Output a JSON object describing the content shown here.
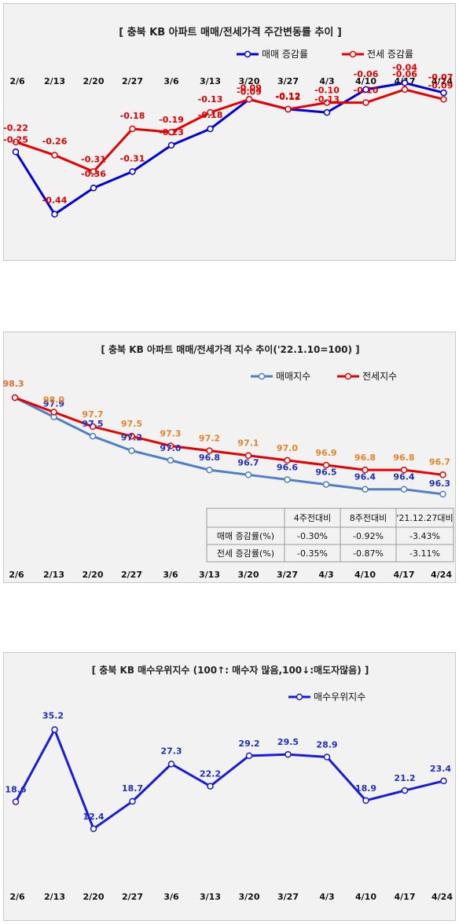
{
  "charts": [
    {
      "title": "[ 충북  KB 아파트 매매/전세가격 주간변동률 추이 ]",
      "type": "line",
      "categories": [
        "2/6",
        "2/13",
        "2/20",
        "2/27",
        "3/6",
        "3/13",
        "3/20",
        "3/27",
        "4/3",
        "4/10",
        "4/17",
        "4/24"
      ],
      "series": [
        {
          "name": "매매 증감률",
          "color": "#0000d8",
          "label_color": "#e00000",
          "values": [
            -0.25,
            -0.44,
            -0.36,
            -0.31,
            -0.23,
            -0.18,
            -0.09,
            -0.12,
            -0.13,
            -0.06,
            -0.04,
            -0.07
          ]
        },
        {
          "name": "전세 증감률",
          "color": "#e60000",
          "label_color": "#e00000",
          "values": [
            -0.22,
            -0.26,
            -0.31,
            -0.18,
            -0.19,
            -0.13,
            -0.09,
            -0.12,
            -0.1,
            -0.1,
            -0.06,
            -0.09
          ]
        }
      ],
      "labels": [
        [
          "-0.25",
          "-0.44",
          "-0.36",
          "-0.31",
          "-0.23",
          "-0.18",
          "-0.09",
          "-0.12",
          "-0.13",
          "-0.06",
          "-0.04",
          "-0.07"
        ],
        [
          "-0.22",
          "-0.26",
          "-0.31",
          "-0.18",
          "-0.19",
          "-0.13",
          "-0.09",
          "-0.12",
          "-0.10",
          "-0.10",
          "-0.06",
          "-0.09"
        ]
      ]
    },
    {
      "title": "[  충북  KB 아파트 매매/전세가격 지수 추이('22.1.10=100)  ]",
      "type": "line",
      "categories": [
        "2/6",
        "2/13",
        "2/20",
        "2/27",
        "3/6",
        "3/13",
        "3/20",
        "3/27",
        "4/3",
        "4/10",
        "4/17",
        "4/24"
      ],
      "series": [
        {
          "name": "매매지수",
          "color": "#4f7fc6",
          "label_color": "#1f2fbf",
          "values": [
            98.3,
            97.9,
            97.5,
            97.2,
            97.0,
            96.8,
            96.7,
            96.6,
            96.5,
            96.4,
            96.4,
            96.3
          ]
        },
        {
          "name": "전세지수",
          "color": "#e60000",
          "label_color": "#e8822a",
          "values": [
            98.3,
            98.0,
            97.7,
            97.5,
            97.3,
            97.2,
            97.1,
            97.0,
            96.9,
            96.8,
            96.8,
            96.7
          ]
        }
      ],
      "labels": [
        [
          "98.3",
          "97.9",
          "97.5",
          "97.2",
          "97.0",
          "96.8",
          "96.7",
          "96.6",
          "96.5",
          "96.4",
          "96.4",
          "96.3"
        ],
        [
          "98.3",
          "98.0",
          "97.7",
          "97.5",
          "97.3",
          "97.2",
          "97.1",
          "97.0",
          "96.9",
          "96.8",
          "96.8",
          "96.7"
        ]
      ],
      "table": {
        "headers": [
          "",
          "4주전대비",
          "8주전대비",
          "'21.12.27대비"
        ],
        "rows": [
          [
            "매매 증감률(%)",
            "-0.30%",
            "-0.92%",
            "-3.43%"
          ],
          [
            "전세 증감률(%)",
            "-0.35%",
            "-0.87%",
            "-3.11%"
          ]
        ]
      }
    },
    {
      "title": "[ 충북 KB 매수우위지수 (100↑: 매수자 많음,100↓:매도자많음) ]",
      "type": "line",
      "categories": [
        "2/6",
        "2/13",
        "2/20",
        "2/27",
        "3/6",
        "3/13",
        "3/20",
        "3/27",
        "4/3",
        "4/10",
        "4/17",
        "4/24"
      ],
      "series": [
        {
          "name": "매수우위지수",
          "color": "#1a1adc",
          "label_color": "#1f2fbf",
          "values": [
            18.6,
            35.2,
            12.4,
            18.7,
            27.3,
            22.2,
            29.2,
            29.5,
            28.9,
            18.9,
            21.2,
            23.4
          ]
        }
      ],
      "labels": [
        [
          "18.6",
          "35.2",
          "12.4",
          "18.7",
          "27.3",
          "22.2",
          "29.2",
          "29.5",
          "28.9",
          "18.9",
          "21.2",
          "23.4"
        ]
      ]
    }
  ]
}
